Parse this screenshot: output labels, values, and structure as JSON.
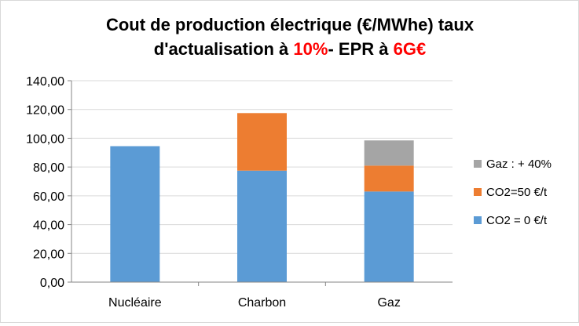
{
  "chart_data": {
    "type": "bar",
    "stacked": true,
    "title_parts": {
      "line1": "Cout de production électrique (€/MWhe) taux",
      "line2_prefix": "d'actualisation à ",
      "line2_rate": "10%",
      "line2_mid": "- EPR à ",
      "line2_cost": "6G€"
    },
    "title_highlight_color": "#ff0000",
    "categories": [
      "Nucléaire",
      "Charbon",
      "Gaz"
    ],
    "series": [
      {
        "name": "CO2 = 0 €/t",
        "color": "#5b9bd5",
        "values": [
          94.5,
          77.5,
          63.0
        ]
      },
      {
        "name": "CO2=50 €/t",
        "color": "#ed7d31",
        "values": [
          0,
          40.0,
          18.0
        ]
      },
      {
        "name": "Gaz : + 40%",
        "color": "#a5a5a5",
        "values": [
          0,
          0,
          17.5
        ]
      }
    ],
    "ylim": [
      0,
      140
    ],
    "yticks": [
      "0,00",
      "20,00",
      "40,00",
      "60,00",
      "80,00",
      "100,00",
      "120,00",
      "140,00"
    ],
    "grid": true,
    "legend_position": "right"
  }
}
